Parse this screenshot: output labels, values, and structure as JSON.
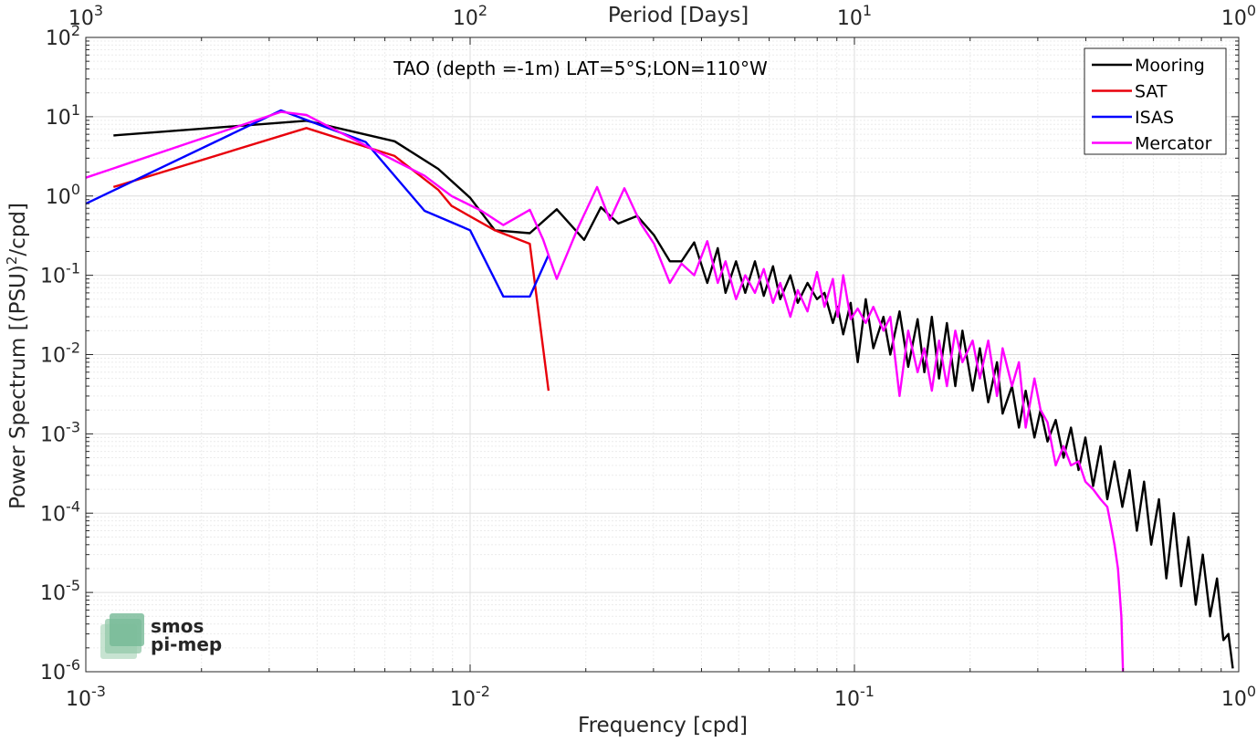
{
  "chart_data": {
    "type": "line",
    "title": "TAO (depth =-1m) LAT=5°S;LON=110°W",
    "xlabel": "Frequency [cpd]",
    "ylabel": "Power Spectrum [(PSU)",
    "ylabel_sup": "2",
    "ylabel_tail": "/cpd]",
    "top_axis_label": "Period [Days]",
    "xscale": "log",
    "yscale": "log",
    "xlim": [
      0.001,
      1
    ],
    "ylim": [
      1e-06,
      100
    ],
    "grid": true,
    "legend_position": "top-right",
    "x_ticks": [
      {
        "base": "10",
        "exp": "-3"
      },
      {
        "base": "10",
        "exp": "-2"
      },
      {
        "base": "10",
        "exp": "-1"
      },
      {
        "base": "10",
        "exp": "0"
      }
    ],
    "top_ticks": [
      {
        "base": "10",
        "exp": "3"
      },
      {
        "base": "10",
        "exp": "2"
      },
      {
        "base": "10",
        "exp": "1"
      },
      {
        "base": "10",
        "exp": "0"
      }
    ],
    "y_ticks": [
      {
        "base": "10",
        "exp": "-6"
      },
      {
        "base": "10",
        "exp": "-5"
      },
      {
        "base": "10",
        "exp": "-4"
      },
      {
        "base": "10",
        "exp": "-3"
      },
      {
        "base": "10",
        "exp": "-2"
      },
      {
        "base": "10",
        "exp": "-1"
      },
      {
        "base": "10",
        "exp": "0"
      },
      {
        "base": "10",
        "exp": "1"
      },
      {
        "base": "10",
        "exp": "2"
      }
    ],
    "series": [
      {
        "name": "Mooring",
        "color": "#000000",
        "x": [
          0.00118,
          0.00375,
          0.00636,
          0.00826,
          0.01,
          0.0116,
          0.0143,
          0.0168,
          0.0198,
          0.0219,
          0.0243,
          0.0272,
          0.0301,
          0.0331,
          0.0355,
          0.0383,
          0.0414,
          0.0441,
          0.0462,
          0.0492,
          0.052,
          0.0551,
          0.0581,
          0.0614,
          0.0641,
          0.0681,
          0.0712,
          0.0755,
          0.0799,
          0.0836,
          0.0879,
          0.0905,
          0.0935,
          0.0978,
          0.102,
          0.107,
          0.112,
          0.119,
          0.124,
          0.131,
          0.138,
          0.146,
          0.152,
          0.159,
          0.166,
          0.174,
          0.183,
          0.191,
          0.203,
          0.212,
          0.223,
          0.235,
          0.243,
          0.257,
          0.268,
          0.279,
          0.294,
          0.305,
          0.318,
          0.334,
          0.35,
          0.366,
          0.383,
          0.399,
          0.418,
          0.437,
          0.455,
          0.475,
          0.498,
          0.52,
          0.543,
          0.567,
          0.592,
          0.62,
          0.648,
          0.678,
          0.708,
          0.74,
          0.773,
          0.806,
          0.842,
          0.878,
          0.912,
          0.94,
          0.965
        ],
        "y": [
          5.8,
          8.9,
          4.9,
          2.2,
          0.95,
          0.37,
          0.34,
          0.68,
          0.28,
          0.72,
          0.45,
          0.56,
          0.32,
          0.15,
          0.15,
          0.26,
          0.08,
          0.22,
          0.06,
          0.15,
          0.06,
          0.15,
          0.055,
          0.13,
          0.05,
          0.1,
          0.045,
          0.08,
          0.05,
          0.06,
          0.025,
          0.04,
          0.018,
          0.045,
          0.008,
          0.05,
          0.012,
          0.03,
          0.01,
          0.035,
          0.007,
          0.028,
          0.006,
          0.03,
          0.005,
          0.025,
          0.004,
          0.02,
          0.0035,
          0.012,
          0.0025,
          0.008,
          0.0018,
          0.004,
          0.0012,
          0.0035,
          0.0009,
          0.002,
          0.0008,
          0.0015,
          0.0005,
          0.0012,
          0.00035,
          0.0009,
          0.00022,
          0.0007,
          0.00015,
          0.00045,
          0.00012,
          0.00035,
          6e-05,
          0.00025,
          4e-05,
          0.00015,
          1.5e-05,
          0.0001,
          1.2e-05,
          5e-05,
          7e-06,
          3e-05,
          5e-06,
          1.5e-05,
          2.5e-06,
          3e-06,
          1.1e-06
        ]
      },
      {
        "name": "SAT",
        "color": "#e8000b",
        "x": [
          0.00118,
          0.00375,
          0.00636,
          0.00826,
          0.00895,
          0.0116,
          0.0143,
          0.016
        ],
        "y": [
          1.3,
          7.2,
          3.2,
          1.2,
          0.75,
          0.37,
          0.25,
          0.0035
        ]
      },
      {
        "name": "ISAS",
        "color": "#0000ff",
        "x": [
          0.001,
          0.00322,
          0.00535,
          0.00761,
          0.01,
          0.0122,
          0.0143,
          0.016
        ],
        "y": [
          0.8,
          12,
          4.8,
          0.65,
          0.37,
          0.054,
          0.054,
          0.18
        ]
      },
      {
        "name": "Mercator",
        "color": "#ff00ff",
        "x": [
          0.001,
          0.00322,
          0.00375,
          0.00636,
          0.00761,
          0.00895,
          0.0107,
          0.0122,
          0.0143,
          0.0155,
          0.0168,
          0.0191,
          0.0214,
          0.0231,
          0.0252,
          0.0278,
          0.0301,
          0.0331,
          0.0355,
          0.0383,
          0.0414,
          0.0441,
          0.0462,
          0.0492,
          0.052,
          0.0551,
          0.0581,
          0.0614,
          0.0641,
          0.0681,
          0.0712,
          0.0755,
          0.0799,
          0.0836,
          0.0879,
          0.0905,
          0.0935,
          0.0978,
          0.102,
          0.107,
          0.112,
          0.119,
          0.124,
          0.131,
          0.138,
          0.146,
          0.152,
          0.159,
          0.166,
          0.174,
          0.183,
          0.191,
          0.203,
          0.212,
          0.223,
          0.235,
          0.243,
          0.257,
          0.268,
          0.279,
          0.294,
          0.305,
          0.318,
          0.334,
          0.35,
          0.366,
          0.383,
          0.399,
          0.418,
          0.437,
          0.455,
          0.465,
          0.475,
          0.485,
          0.495,
          0.5
        ],
        "y": [
          1.7,
          11.5,
          10.5,
          2.8,
          1.8,
          1.0,
          0.65,
          0.43,
          0.67,
          0.28,
          0.09,
          0.4,
          1.3,
          0.5,
          1.25,
          0.45,
          0.25,
          0.08,
          0.14,
          0.1,
          0.27,
          0.08,
          0.15,
          0.05,
          0.1,
          0.06,
          0.12,
          0.045,
          0.08,
          0.03,
          0.065,
          0.035,
          0.11,
          0.04,
          0.09,
          0.03,
          0.1,
          0.028,
          0.038,
          0.025,
          0.04,
          0.02,
          0.03,
          0.003,
          0.02,
          0.006,
          0.012,
          0.0035,
          0.015,
          0.004,
          0.02,
          0.008,
          0.015,
          0.005,
          0.015,
          0.003,
          0.012,
          0.004,
          0.008,
          0.0012,
          0.005,
          0.002,
          0.0014,
          0.0004,
          0.0007,
          0.0004,
          0.00045,
          0.00025,
          0.0002,
          0.00015,
          0.00012,
          7e-05,
          4e-05,
          2e-05,
          5e-06,
          9e-07
        ]
      }
    ]
  },
  "watermark": {
    "line1": "smos",
    "line2": "pi-mep",
    "color": "#5aa97e"
  }
}
